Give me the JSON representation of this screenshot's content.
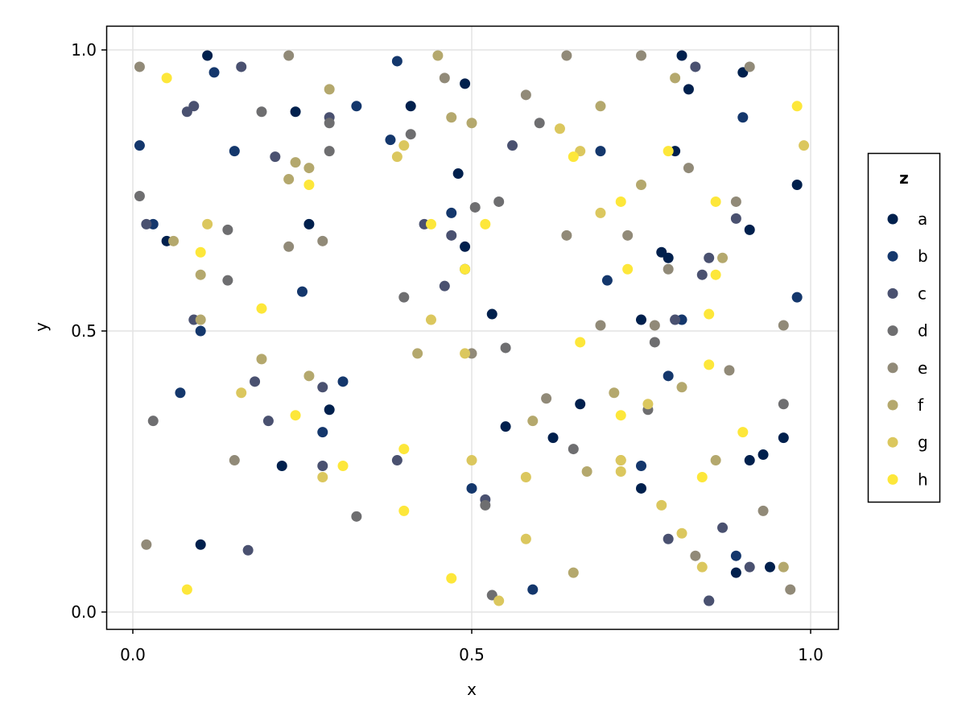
{
  "chart_data": {
    "type": "scatter",
    "title": "",
    "xlabel": "x",
    "ylabel": "y",
    "xlim": [
      -0.04,
      1.04
    ],
    "ylim": [
      -0.04,
      1.04
    ],
    "xticks": [
      0.0,
      0.5,
      1.0
    ],
    "yticks": [
      0.0,
      0.5,
      1.0
    ],
    "xtick_labels": [
      "0.0",
      "0.5",
      "1.0"
    ],
    "ytick_labels": [
      "0.0",
      "0.5",
      "1.0"
    ],
    "grid": true,
    "legend": {
      "title": "z",
      "placement": "right"
    },
    "series": [
      {
        "name": "a",
        "color": "#00204d",
        "points": [
          [
            0.11,
            0.99
          ],
          [
            0.49,
            0.94
          ],
          [
            0.24,
            0.89
          ],
          [
            0.41,
            0.9
          ],
          [
            0.48,
            0.78
          ],
          [
            0.26,
            0.69
          ],
          [
            0.49,
            0.65
          ],
          [
            0.49,
            0.61
          ],
          [
            0.05,
            0.66
          ],
          [
            0.81,
            0.99
          ],
          [
            0.82,
            0.93
          ],
          [
            0.9,
            0.96
          ],
          [
            0.98,
            0.76
          ],
          [
            0.8,
            0.82
          ],
          [
            0.91,
            0.68
          ],
          [
            0.78,
            0.64
          ],
          [
            0.79,
            0.63
          ],
          [
            0.53,
            0.53
          ],
          [
            0.75,
            0.52
          ],
          [
            0.29,
            0.36
          ],
          [
            0.22,
            0.26
          ],
          [
            0.1,
            0.12
          ],
          [
            0.66,
            0.37
          ],
          [
            0.55,
            0.33
          ],
          [
            0.62,
            0.31
          ],
          [
            0.96,
            0.31
          ],
          [
            0.93,
            0.28
          ],
          [
            0.91,
            0.27
          ],
          [
            0.75,
            0.22
          ],
          [
            0.89,
            0.07
          ],
          [
            0.94,
            0.08
          ],
          [
            0.85,
            0.02
          ]
        ]
      },
      {
        "name": "b",
        "color": "#14376c",
        "points": [
          [
            0.12,
            0.96
          ],
          [
            0.39,
            0.98
          ],
          [
            0.33,
            0.9
          ],
          [
            0.01,
            0.83
          ],
          [
            0.15,
            0.82
          ],
          [
            0.38,
            0.84
          ],
          [
            0.47,
            0.71
          ],
          [
            0.03,
            0.69
          ],
          [
            0.25,
            0.57
          ],
          [
            0.1,
            0.5
          ],
          [
            0.9,
            0.88
          ],
          [
            0.69,
            0.82
          ],
          [
            0.7,
            0.59
          ],
          [
            0.98,
            0.56
          ],
          [
            0.81,
            0.52
          ],
          [
            0.31,
            0.41
          ],
          [
            0.07,
            0.39
          ],
          [
            0.28,
            0.32
          ],
          [
            0.5,
            0.22
          ],
          [
            0.79,
            0.42
          ],
          [
            0.75,
            0.26
          ],
          [
            0.89,
            0.1
          ],
          [
            0.59,
            0.04
          ]
        ]
      },
      {
        "name": "c",
        "color": "#4a5170",
        "points": [
          [
            0.16,
            0.97
          ],
          [
            0.09,
            0.9
          ],
          [
            0.08,
            0.89
          ],
          [
            0.29,
            0.88
          ],
          [
            0.21,
            0.81
          ],
          [
            0.02,
            0.69
          ],
          [
            0.43,
            0.69
          ],
          [
            0.47,
            0.67
          ],
          [
            0.46,
            0.58
          ],
          [
            0.09,
            0.52
          ],
          [
            0.83,
            0.97
          ],
          [
            0.56,
            0.83
          ],
          [
            0.89,
            0.7
          ],
          [
            0.85,
            0.63
          ],
          [
            0.84,
            0.6
          ],
          [
            0.8,
            0.52
          ],
          [
            0.18,
            0.41
          ],
          [
            0.28,
            0.4
          ],
          [
            0.2,
            0.34
          ],
          [
            0.39,
            0.27
          ],
          [
            0.28,
            0.26
          ],
          [
            0.17,
            0.11
          ],
          [
            0.52,
            0.2
          ],
          [
            0.87,
            0.15
          ],
          [
            0.79,
            0.13
          ],
          [
            0.91,
            0.08
          ],
          [
            0.85,
            0.02
          ]
        ]
      },
      {
        "name": "d",
        "color": "#6e6e70",
        "points": [
          [
            0.19,
            0.89
          ],
          [
            0.29,
            0.87
          ],
          [
            0.41,
            0.85
          ],
          [
            0.29,
            0.82
          ],
          [
            0.01,
            0.74
          ],
          [
            0.505,
            0.72
          ],
          [
            0.14,
            0.68
          ],
          [
            0.14,
            0.59
          ],
          [
            0.4,
            0.56
          ],
          [
            0.6,
            0.87
          ],
          [
            0.54,
            0.73
          ],
          [
            0.03,
            0.34
          ],
          [
            0.33,
            0.17
          ],
          [
            0.55,
            0.47
          ],
          [
            0.77,
            0.48
          ],
          [
            0.76,
            0.36
          ],
          [
            0.96,
            0.37
          ],
          [
            0.65,
            0.29
          ],
          [
            0.52,
            0.19
          ],
          [
            0.53,
            0.03
          ]
        ]
      },
      {
        "name": "e",
        "color": "#918a78",
        "points": [
          [
            0.01,
            0.97
          ],
          [
            0.23,
            0.99
          ],
          [
            0.46,
            0.95
          ],
          [
            0.23,
            0.65
          ],
          [
            0.28,
            0.66
          ],
          [
            0.64,
            0.99
          ],
          [
            0.75,
            0.99
          ],
          [
            0.91,
            0.97
          ],
          [
            0.58,
            0.92
          ],
          [
            0.82,
            0.79
          ],
          [
            0.89,
            0.73
          ],
          [
            0.64,
            0.67
          ],
          [
            0.73,
            0.67
          ],
          [
            0.79,
            0.61
          ],
          [
            0.69,
            0.51
          ],
          [
            0.77,
            0.51
          ],
          [
            0.96,
            0.51
          ],
          [
            0.5,
            0.46
          ],
          [
            0.15,
            0.27
          ],
          [
            0.02,
            0.12
          ],
          [
            0.88,
            0.43
          ],
          [
            0.61,
            0.38
          ],
          [
            0.93,
            0.18
          ],
          [
            0.83,
            0.1
          ],
          [
            0.97,
            0.04
          ]
        ]
      },
      {
        "name": "f",
        "color": "#b4a86d",
        "points": [
          [
            0.29,
            0.93
          ],
          [
            0.45,
            0.99
          ],
          [
            0.47,
            0.88
          ],
          [
            0.5,
            0.87
          ],
          [
            0.24,
            0.8
          ],
          [
            0.26,
            0.79
          ],
          [
            0.23,
            0.77
          ],
          [
            0.06,
            0.66
          ],
          [
            0.1,
            0.6
          ],
          [
            0.1,
            0.52
          ],
          [
            0.8,
            0.95
          ],
          [
            0.69,
            0.9
          ],
          [
            0.75,
            0.76
          ],
          [
            0.87,
            0.63
          ],
          [
            0.19,
            0.45
          ],
          [
            0.42,
            0.46
          ],
          [
            0.26,
            0.42
          ],
          [
            0.81,
            0.4
          ],
          [
            0.71,
            0.39
          ],
          [
            0.59,
            0.34
          ],
          [
            0.72,
            0.27
          ],
          [
            0.67,
            0.25
          ],
          [
            0.86,
            0.27
          ],
          [
            0.96,
            0.08
          ],
          [
            0.65,
            0.07
          ]
        ]
      },
      {
        "name": "g",
        "color": "#dbc75e",
        "points": [
          [
            0.4,
            0.83
          ],
          [
            0.39,
            0.81
          ],
          [
            0.11,
            0.69
          ],
          [
            0.44,
            0.52
          ],
          [
            0.63,
            0.86
          ],
          [
            0.66,
            0.82
          ],
          [
            0.99,
            0.83
          ],
          [
            0.69,
            0.71
          ],
          [
            0.49,
            0.46
          ],
          [
            0.16,
            0.39
          ],
          [
            0.5,
            0.27
          ],
          [
            0.28,
            0.24
          ],
          [
            0.76,
            0.37
          ],
          [
            0.72,
            0.27
          ],
          [
            0.72,
            0.25
          ],
          [
            0.58,
            0.24
          ],
          [
            0.78,
            0.19
          ],
          [
            0.81,
            0.14
          ],
          [
            0.58,
            0.13
          ],
          [
            0.84,
            0.08
          ],
          [
            0.54,
            0.02
          ]
        ]
      },
      {
        "name": "h",
        "color": "#fde73a",
        "points": [
          [
            0.05,
            0.95
          ],
          [
            0.26,
            0.76
          ],
          [
            0.44,
            0.69
          ],
          [
            0.49,
            0.61
          ],
          [
            0.1,
            0.64
          ],
          [
            0.19,
            0.54
          ],
          [
            0.98,
            0.9
          ],
          [
            0.65,
            0.81
          ],
          [
            0.79,
            0.82
          ],
          [
            0.72,
            0.73
          ],
          [
            0.86,
            0.73
          ],
          [
            0.52,
            0.69
          ],
          [
            0.86,
            0.6
          ],
          [
            0.73,
            0.61
          ],
          [
            0.85,
            0.53
          ],
          [
            0.24,
            0.35
          ],
          [
            0.4,
            0.29
          ],
          [
            0.31,
            0.26
          ],
          [
            0.4,
            0.18
          ],
          [
            0.08,
            0.04
          ],
          [
            0.47,
            0.06
          ],
          [
            0.66,
            0.48
          ],
          [
            0.85,
            0.44
          ],
          [
            0.72,
            0.35
          ],
          [
            0.9,
            0.32
          ],
          [
            0.84,
            0.24
          ]
        ]
      }
    ]
  }
}
